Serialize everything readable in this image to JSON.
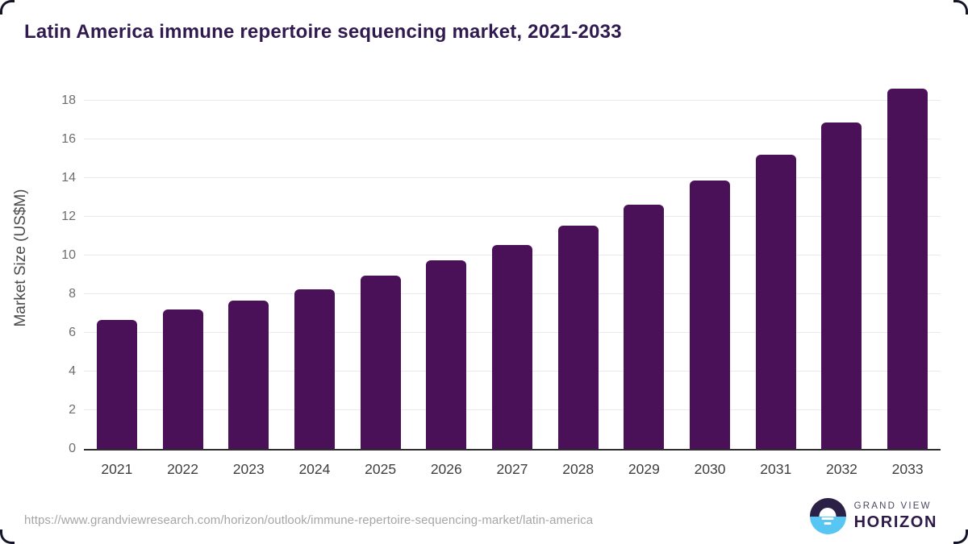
{
  "header": {
    "title": "Latin America immune repertoire sequencing market, 2021-2033"
  },
  "chart_data": {
    "type": "bar",
    "title": "Latin America immune repertoire sequencing market, 2021-2033",
    "categories": [
      "2021",
      "2022",
      "2023",
      "2024",
      "2025",
      "2026",
      "2027",
      "2028",
      "2029",
      "2030",
      "2031",
      "2032",
      "2033"
    ],
    "values": [
      6.65,
      7.2,
      7.65,
      8.25,
      8.95,
      9.75,
      10.55,
      11.55,
      12.6,
      13.85,
      15.2,
      16.85,
      18.6
    ],
    "xlabel": "",
    "ylabel": "Market Size (US$M)",
    "ylim": [
      0,
      19.2
    ],
    "yticks": [
      0,
      2,
      4,
      6,
      8,
      10,
      12,
      14,
      16,
      18
    ],
    "grid": "horizontal",
    "legend": "none",
    "bar_color": "#4a1159"
  },
  "colors": {
    "title_text": "#311a4f",
    "bar": "#4a1159",
    "axis_line": "#2e2e2e",
    "gridline": "#e9e9ed",
    "logo_dark": "#2b2045",
    "logo_blue": "#58c6f2"
  },
  "footer": {
    "source_url": "https://www.grandviewresearch.com/horizon/outlook/immune-repertoire-sequencing-market/latin-america",
    "logo": {
      "line1": "GRAND VIEW",
      "line2": "HORIZON"
    }
  }
}
